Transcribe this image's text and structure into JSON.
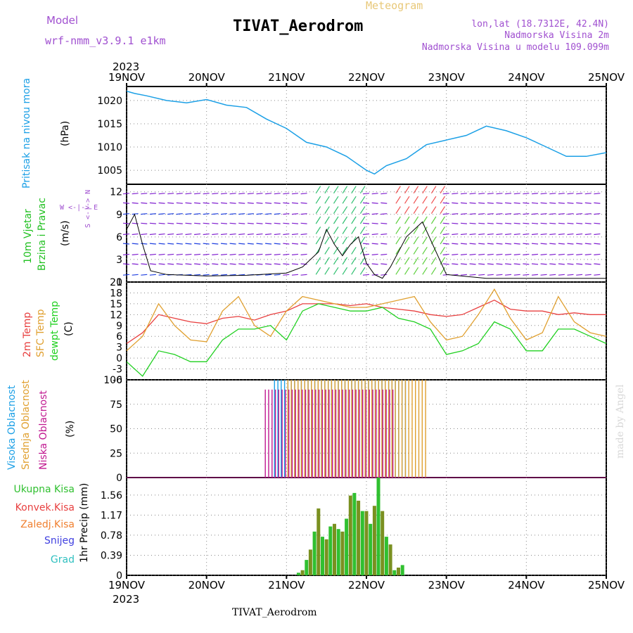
{
  "header": {
    "model_label": "Model",
    "model_name": "wrf-nmm_v3.9.1  e1km",
    "title": "TIVAT_Aerodrom",
    "subtitle": "Meteogram",
    "coords": "lon,lat (18.7312E, 42.4N)",
    "elevation": "Nadmorska Visina 2m",
    "model_elevation": "Nadmorska Visina u modelu 109.099m",
    "footer_title": "TIVAT_Aerodrom",
    "watermark": "made by Angel"
  },
  "colors": {
    "pressure": "#1ca0e6",
    "temp2m": "#e84040",
    "sfctemp": "#e0a030",
    "dewpt": "#20d020",
    "cloud_high": "#1ca0e6",
    "cloud_mid": "#e0a030",
    "cloud_low": "#c01890",
    "precip_total": "#30c030",
    "precip_conv": "#e84040",
    "precip_frozen": "#f08030",
    "snow": "#4040e0",
    "hail": "#30c0c0",
    "purple": "#a050d0",
    "wind_light": "#8020d0",
    "wind_mid": "#2040e0",
    "wind_strong": "#20c0c0"
  },
  "time_axis": {
    "year": "2023",
    "labels": [
      "19NOV",
      "20NOV",
      "21NOV",
      "22NOV",
      "23NOV",
      "24NOV",
      "25NOV"
    ]
  },
  "panels": {
    "pressure": {
      "ylabel": "Pritisak na nivou mora",
      "unit": "(hPa)"
    },
    "wind": {
      "ylabel1": "10m Vjetar",
      "ylabel2": "Brzina i Pravac",
      "unit": "(m/s)",
      "compass": "W <-|-> E",
      "compass_ns": "S <-|-> N"
    },
    "temp": {
      "label_2m": "2m Temp",
      "label_sfc": "SFC Temp",
      "label_dew": "dewpt Temp",
      "unit": "(C)"
    },
    "cloud": {
      "label_high": "Visoka Oblacnost",
      "label_mid": "Srednja Oblacnost",
      "label_low": "Niska Oblacnost",
      "unit": "(%)"
    },
    "precip": {
      "label_total": "Ukupna Kisa",
      "label_conv": "Konvek.Kisa",
      "label_frozen": "Zaledj.Kisa",
      "label_snow": "Snijeg",
      "label_hail": "Grad",
      "unit": "1hr Precip (mm)"
    }
  },
  "chart_data": [
    {
      "type": "line",
      "panel": "pressure",
      "x_unit": "days since 19NOV 00UTC",
      "ylim": [
        1002,
        1023
      ],
      "yticks": [
        "1005",
        "1010",
        "1015",
        "1020"
      ],
      "series": [
        {
          "name": "Pritisak na nivou mora",
          "x": [
            0,
            0.1,
            0.25,
            0.5,
            0.75,
            1.0,
            1.25,
            1.5,
            1.75,
            2.0,
            2.25,
            2.5,
            2.75,
            3.0,
            3.1,
            3.25,
            3.5,
            3.75,
            4.0,
            4.25,
            4.5,
            4.75,
            5.0,
            5.25,
            5.5,
            5.75,
            6.0
          ],
          "y": [
            1022,
            1021.5,
            1021,
            1020,
            1019.5,
            1020.2,
            1019,
            1018.5,
            1016,
            1014,
            1011,
            1010,
            1008,
            1005,
            1004.2,
            1006,
            1007.5,
            1010.5,
            1011.5,
            1012.5,
            1014.5,
            1013.5,
            1012,
            1010,
            1008,
            1008,
            1008.8
          ]
        }
      ]
    },
    {
      "type": "line",
      "panel": "wind",
      "x_unit": "days since 19NOV 00UTC",
      "ylim": [
        0,
        13
      ],
      "yticks": [
        "0",
        "3",
        "6",
        "9",
        "12"
      ],
      "series": [
        {
          "name": "wind speed",
          "x": [
            0,
            0.1,
            0.2,
            0.3,
            0.5,
            1.0,
            1.5,
            2.0,
            2.2,
            2.4,
            2.5,
            2.6,
            2.7,
            2.8,
            2.9,
            3.0,
            3.1,
            3.2,
            3.3,
            3.5,
            3.7,
            4.0,
            4.5,
            5.0,
            5.5,
            6.0
          ],
          "y": [
            7,
            9,
            5,
            1.5,
            1,
            0.8,
            0.9,
            1.2,
            2,
            4,
            7,
            5,
            3.5,
            5,
            6,
            2.5,
            1,
            0.5,
            2,
            6,
            8,
            1,
            0.5,
            0.5,
            0.5,
            0.5
          ]
        }
      ]
    },
    {
      "type": "line",
      "panel": "temp",
      "x_unit": "days since 19NOV 00UTC",
      "ylim": [
        -6,
        21
      ],
      "yticks": [
        "-6",
        "-3",
        "0",
        "3",
        "6",
        "9",
        "12",
        "15",
        "18",
        "21"
      ],
      "series": [
        {
          "name": "2m Temp",
          "x": [
            0,
            0.2,
            0.4,
            0.6,
            0.8,
            1.0,
            1.2,
            1.4,
            1.6,
            1.8,
            2.0,
            2.2,
            2.4,
            2.6,
            2.8,
            3.0,
            3.2,
            3.4,
            3.6,
            3.8,
            4.0,
            4.2,
            4.4,
            4.6,
            4.8,
            5.0,
            5.2,
            5.4,
            5.6,
            5.8,
            6.0
          ],
          "y": [
            4,
            7,
            12,
            11,
            10,
            9.5,
            11,
            11.5,
            10.5,
            12,
            13,
            15,
            15,
            15,
            14.5,
            15,
            14,
            13.5,
            13,
            12,
            11.5,
            12,
            14,
            16,
            13.5,
            13,
            13,
            12,
            12.5,
            12,
            12
          ]
        },
        {
          "name": "SFC Temp",
          "x": [
            0,
            0.2,
            0.4,
            0.6,
            0.8,
            1.0,
            1.2,
            1.4,
            1.6,
            1.8,
            2.0,
            2.2,
            2.4,
            2.6,
            2.8,
            3.0,
            3.2,
            3.4,
            3.6,
            3.8,
            4.0,
            4.2,
            4.4,
            4.6,
            4.8,
            5.0,
            5.2,
            5.4,
            5.6,
            5.8,
            6.0
          ],
          "y": [
            2,
            6,
            15,
            9,
            5,
            4.5,
            13,
            17,
            9,
            6,
            13,
            17,
            16,
            15,
            14,
            14,
            15,
            16,
            17,
            10,
            5,
            6,
            12,
            19,
            11,
            5,
            7,
            17,
            10,
            7,
            6
          ]
        },
        {
          "name": "dewpt Temp",
          "x": [
            0,
            0.2,
            0.4,
            0.6,
            0.8,
            1.0,
            1.2,
            1.4,
            1.6,
            1.8,
            2.0,
            2.2,
            2.4,
            2.6,
            2.8,
            3.0,
            3.2,
            3.4,
            3.6,
            3.8,
            4.0,
            4.2,
            4.4,
            4.6,
            4.8,
            5.0,
            5.2,
            5.4,
            5.6,
            5.8,
            6.0
          ],
          "y": [
            -1,
            -5,
            2,
            1,
            -1,
            -1,
            5,
            8,
            8,
            9,
            5,
            13,
            15,
            14,
            13,
            13,
            14,
            11,
            10,
            8,
            1,
            2,
            4,
            10,
            8,
            2,
            2,
            8,
            8,
            6,
            4
          ]
        }
      ]
    },
    {
      "type": "bar",
      "panel": "cloud",
      "ylim": [
        0,
        100
      ],
      "yticks": [
        "0",
        "25",
        "50",
        "75",
        "100"
      ],
      "series": [
        {
          "name": "Visoka Oblacnost",
          "x_start": 1.85,
          "x_end": 3.5,
          "value": 100
        },
        {
          "name": "Srednja Oblacnost",
          "x_start": 2.0,
          "x_end": 3.75,
          "value": 100
        },
        {
          "name": "Niska Oblacnost",
          "x_start": 1.7,
          "x_end": 3.3,
          "value": 90
        }
      ]
    },
    {
      "type": "bar",
      "panel": "precip",
      "ylim": [
        0,
        1.9
      ],
      "yticks": [
        "0",
        "0.39",
        "0.78",
        "1.17",
        "1.56"
      ],
      "series": [
        {
          "name": "Ukupna Kisa",
          "x": [
            2.15,
            2.2,
            2.25,
            2.3,
            2.35,
            2.4,
            2.45,
            2.5,
            2.55,
            2.6,
            2.65,
            2.7,
            2.75,
            2.8,
            2.85,
            2.9,
            2.95,
            3.0,
            3.05,
            3.1,
            3.15,
            3.2,
            3.25,
            3.3,
            3.35,
            3.4,
            3.45
          ],
          "values": [
            0.05,
            0.1,
            0.3,
            0.5,
            0.85,
            1.3,
            0.75,
            0.7,
            0.95,
            1.0,
            0.9,
            0.85,
            1.1,
            1.55,
            1.6,
            1.45,
            1.25,
            1.25,
            1.0,
            1.35,
            1.9,
            1.25,
            0.75,
            0.6,
            0.1,
            0.15,
            0.2
          ]
        }
      ]
    }
  ]
}
